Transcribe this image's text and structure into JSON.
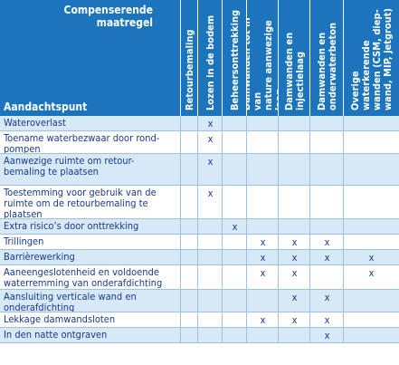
{
  "header": {
    "title": "Compenserende\nmaatregel",
    "corner_label": "Aandachtspunt",
    "columns": [
      "Retourbemaling",
      "Lozen in de bodem",
      "Beheersonttrekking",
      "Damwanden tot in van\nnature aanwezige laag",
      "Damwanden en\ninjectielaag",
      "Damwanden en\nonderwaterbeton",
      "Overige waterkerende\nwanden (CSM, diep-\nwand, MIP, jetgrout)"
    ]
  },
  "rows": [
    {
      "label": "Wateroverlast",
      "marks": [
        "",
        "x",
        "",
        "",
        "",
        "",
        ""
      ]
    },
    {
      "label": "Toename waterbezwaar door rond-\npompen",
      "marks": [
        "",
        "x",
        "",
        "",
        "",
        "",
        ""
      ]
    },
    {
      "label": "Aanwezige ruimte om retour-\nbemaling te plaatsen",
      "marks": [
        "",
        "x",
        "",
        "",
        "",
        "",
        ""
      ]
    },
    {
      "label": "Toestemming voor gebruik van de\nruimte om de retourbemaling te\nplaatsen",
      "marks": [
        "",
        "x",
        "",
        "",
        "",
        "",
        ""
      ]
    },
    {
      "label": "Extra risico’s door onttrekking",
      "marks": [
        "",
        "",
        "x",
        "",
        "",
        "",
        ""
      ]
    },
    {
      "label": "Trillingen",
      "marks": [
        "",
        "",
        "",
        "x",
        "x",
        "x",
        ""
      ]
    },
    {
      "label": "Barrièrewerking",
      "marks": [
        "",
        "",
        "",
        "x",
        "x",
        "x",
        "x"
      ]
    },
    {
      "label": "Aaneengeslotenheid en voldoende\nwaterremming van onderafdichting",
      "marks": [
        "",
        "",
        "",
        "x",
        "x",
        "",
        "x"
      ]
    },
    {
      "label": "Aansluiting verticale wand en\nonderafdichting",
      "marks": [
        "",
        "",
        "",
        "",
        "x",
        "x",
        ""
      ]
    },
    {
      "label": "Lekkage damwandsloten",
      "marks": [
        "",
        "",
        "",
        "x",
        "x",
        "x",
        ""
      ]
    },
    {
      "label": "In den natte ontgraven",
      "marks": [
        "",
        "",
        "",
        "",
        "",
        "x",
        ""
      ]
    }
  ]
}
